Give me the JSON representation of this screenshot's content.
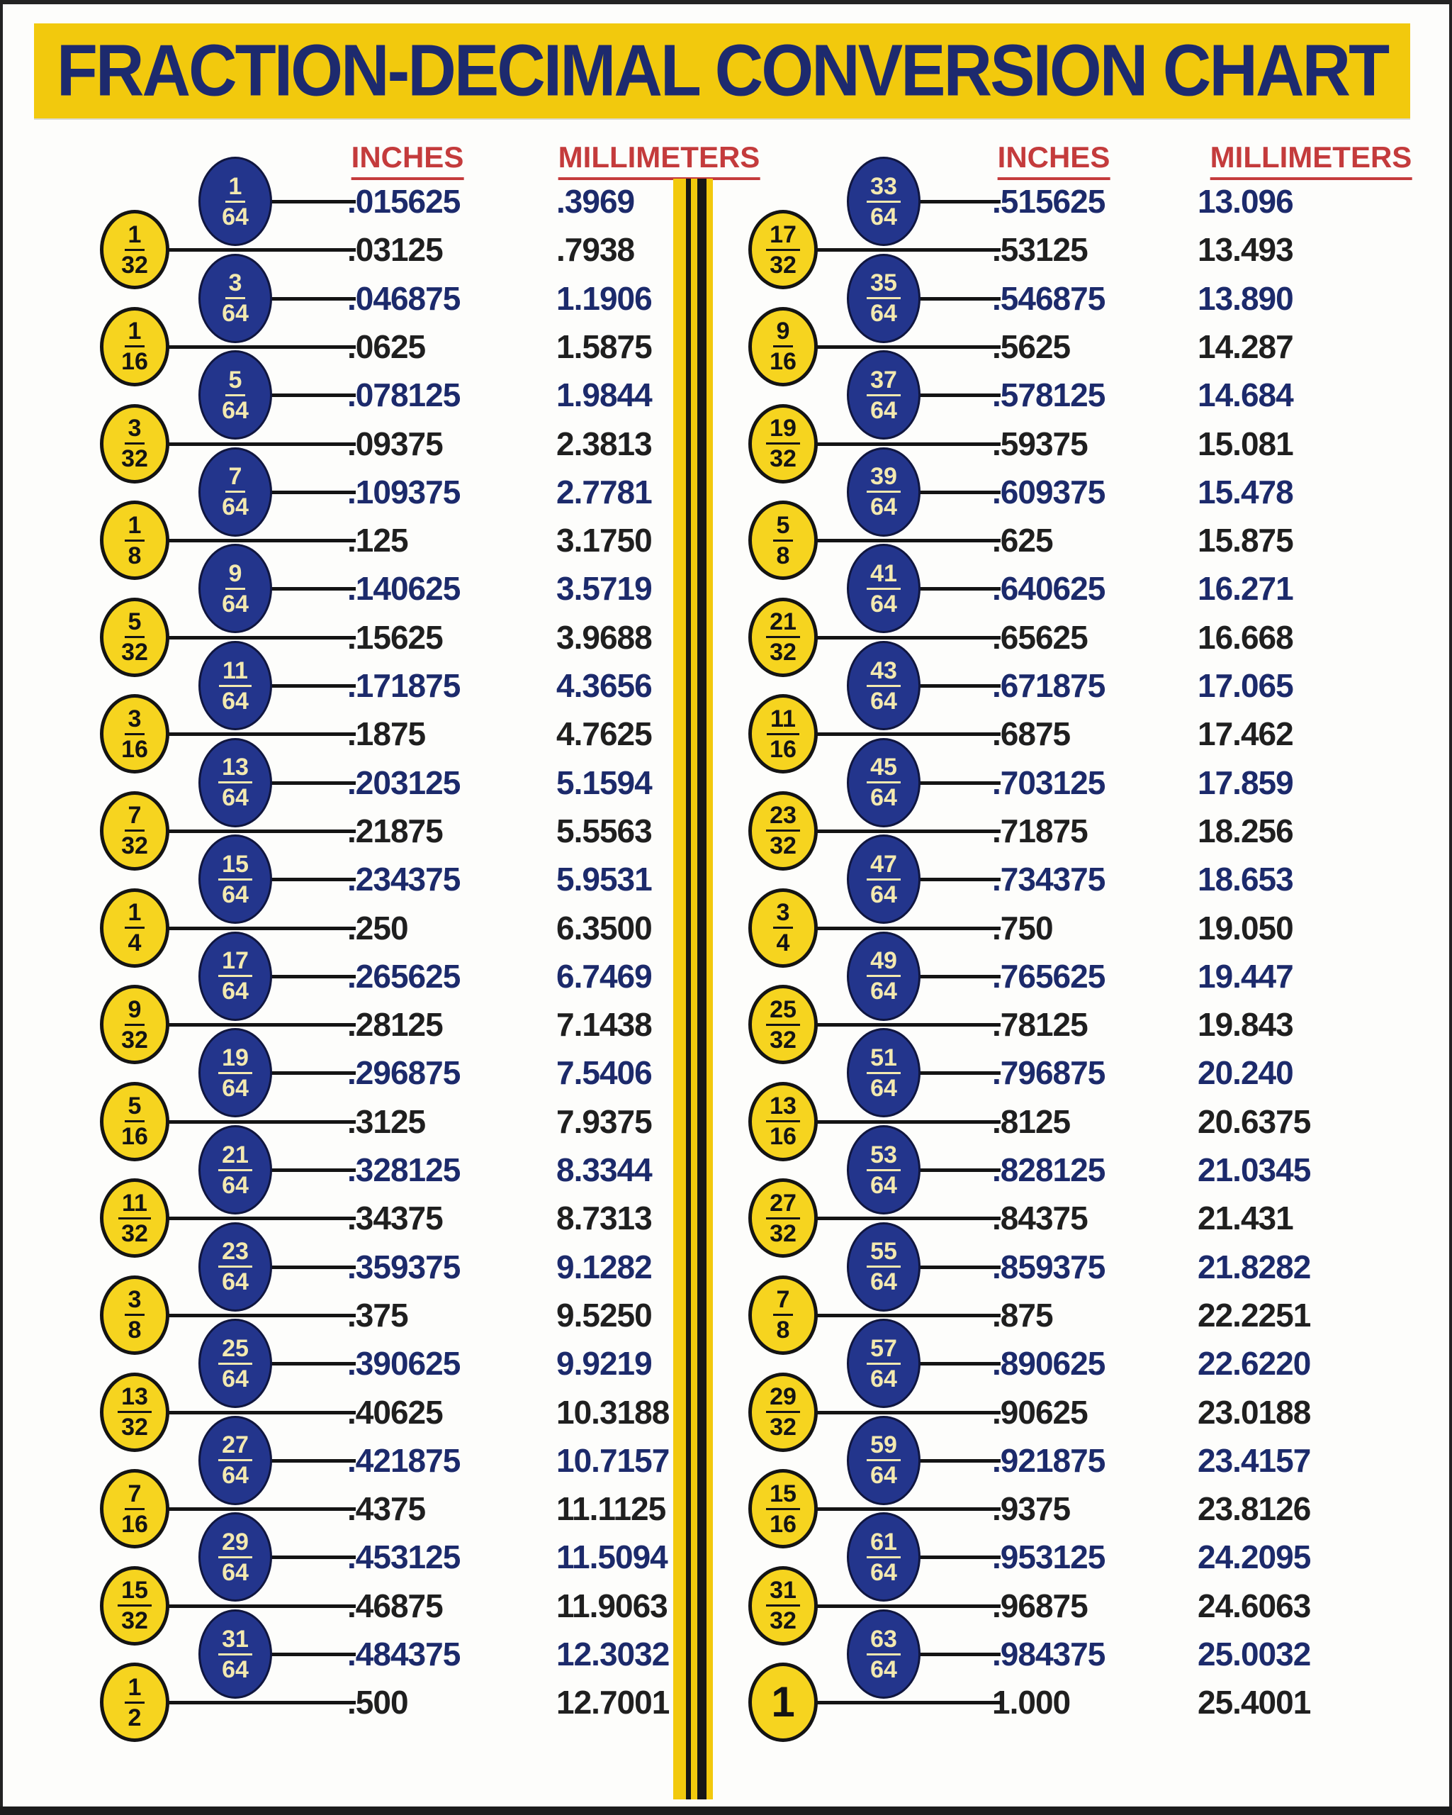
{
  "title": "FRACTION-DECIMAL CONVERSION CHART",
  "headers": {
    "inches": "INCHES",
    "millimeters": "MILLIMETERS"
  },
  "colors": {
    "banner_yellow": "#F2C90D",
    "circle_yellow": "#F6D41F",
    "circle_navy": "#23358C",
    "title_navy": "#1D2A6E",
    "value_navy": "#1C2A6B",
    "value_black": "#1F1F1F",
    "header_red": "#C43B3C",
    "stripe_black": "#161616",
    "background": "#FDFDFB"
  },
  "chart_data": {
    "type": "table",
    "title": "FRACTION-DECIMAL CONVERSION CHART",
    "columns": [
      "fraction",
      "inches",
      "millimeters"
    ],
    "left_rows": [
      {
        "num": "1",
        "den": "64",
        "inches": ".015625",
        "mm": ".3969"
      },
      {
        "num": "1",
        "den": "32",
        "inches": ".03125",
        "mm": ".7938"
      },
      {
        "num": "3",
        "den": "64",
        "inches": ".046875",
        "mm": "1.1906"
      },
      {
        "num": "1",
        "den": "16",
        "inches": ".0625",
        "mm": "1.5875"
      },
      {
        "num": "5",
        "den": "64",
        "inches": ".078125",
        "mm": "1.9844"
      },
      {
        "num": "3",
        "den": "32",
        "inches": ".09375",
        "mm": "2.3813"
      },
      {
        "num": "7",
        "den": "64",
        "inches": ".109375",
        "mm": "2.7781"
      },
      {
        "num": "1",
        "den": "8",
        "inches": ".125",
        "mm": "3.1750"
      },
      {
        "num": "9",
        "den": "64",
        "inches": ".140625",
        "mm": "3.5719"
      },
      {
        "num": "5",
        "den": "32",
        "inches": ".15625",
        "mm": "3.9688"
      },
      {
        "num": "11",
        "den": "64",
        "inches": ".171875",
        "mm": "4.3656"
      },
      {
        "num": "3",
        "den": "16",
        "inches": ".1875",
        "mm": "4.7625"
      },
      {
        "num": "13",
        "den": "64",
        "inches": ".203125",
        "mm": "5.1594"
      },
      {
        "num": "7",
        "den": "32",
        "inches": ".21875",
        "mm": "5.5563"
      },
      {
        "num": "15",
        "den": "64",
        "inches": ".234375",
        "mm": "5.9531"
      },
      {
        "num": "1",
        "den": "4",
        "inches": ".250",
        "mm": "6.3500"
      },
      {
        "num": "17",
        "den": "64",
        "inches": ".265625",
        "mm": "6.7469"
      },
      {
        "num": "9",
        "den": "32",
        "inches": ".28125",
        "mm": "7.1438"
      },
      {
        "num": "19",
        "den": "64",
        "inches": ".296875",
        "mm": "7.5406"
      },
      {
        "num": "5",
        "den": "16",
        "inches": ".3125",
        "mm": "7.9375"
      },
      {
        "num": "21",
        "den": "64",
        "inches": ".328125",
        "mm": "8.3344"
      },
      {
        "num": "11",
        "den": "32",
        "inches": ".34375",
        "mm": "8.7313"
      },
      {
        "num": "23",
        "den": "64",
        "inches": ".359375",
        "mm": "9.1282"
      },
      {
        "num": "3",
        "den": "8",
        "inches": ".375",
        "mm": "9.5250"
      },
      {
        "num": "25",
        "den": "64",
        "inches": ".390625",
        "mm": "9.9219"
      },
      {
        "num": "13",
        "den": "32",
        "inches": ".40625",
        "mm": "10.3188"
      },
      {
        "num": "27",
        "den": "64",
        "inches": ".421875",
        "mm": "10.7157"
      },
      {
        "num": "7",
        "den": "16",
        "inches": ".4375",
        "mm": "11.1125"
      },
      {
        "num": "29",
        "den": "64",
        "inches": ".453125",
        "mm": "11.5094"
      },
      {
        "num": "15",
        "den": "32",
        "inches": ".46875",
        "mm": "11.9063"
      },
      {
        "num": "31",
        "den": "64",
        "inches": ".484375",
        "mm": "12.3032"
      },
      {
        "num": "1",
        "den": "2",
        "inches": ".500",
        "mm": "12.7001"
      }
    ],
    "right_rows": [
      {
        "num": "33",
        "den": "64",
        "inches": ".515625",
        "mm": "13.096"
      },
      {
        "num": "17",
        "den": "32",
        "inches": ".53125",
        "mm": "13.493"
      },
      {
        "num": "35",
        "den": "64",
        "inches": ".546875",
        "mm": "13.890"
      },
      {
        "num": "9",
        "den": "16",
        "inches": ".5625",
        "mm": "14.287"
      },
      {
        "num": "37",
        "den": "64",
        "inches": ".578125",
        "mm": "14.684"
      },
      {
        "num": "19",
        "den": "32",
        "inches": ".59375",
        "mm": "15.081"
      },
      {
        "num": "39",
        "den": "64",
        "inches": ".609375",
        "mm": "15.478"
      },
      {
        "num": "5",
        "den": "8",
        "inches": ".625",
        "mm": "15.875"
      },
      {
        "num": "41",
        "den": "64",
        "inches": ".640625",
        "mm": "16.271"
      },
      {
        "num": "21",
        "den": "32",
        "inches": ".65625",
        "mm": "16.668"
      },
      {
        "num": "43",
        "den": "64",
        "inches": ".671875",
        "mm": "17.065"
      },
      {
        "num": "11",
        "den": "16",
        "inches": ".6875",
        "mm": "17.462"
      },
      {
        "num": "45",
        "den": "64",
        "inches": ".703125",
        "mm": "17.859"
      },
      {
        "num": "23",
        "den": "32",
        "inches": ".71875",
        "mm": "18.256"
      },
      {
        "num": "47",
        "den": "64",
        "inches": ".734375",
        "mm": "18.653"
      },
      {
        "num": "3",
        "den": "4",
        "inches": ".750",
        "mm": "19.050"
      },
      {
        "num": "49",
        "den": "64",
        "inches": ".765625",
        "mm": "19.447"
      },
      {
        "num": "25",
        "den": "32",
        "inches": ".78125",
        "mm": "19.843"
      },
      {
        "num": "51",
        "den": "64",
        "inches": ".796875",
        "mm": "20.240"
      },
      {
        "num": "13",
        "den": "16",
        "inches": ".8125",
        "mm": "20.6375"
      },
      {
        "num": "53",
        "den": "64",
        "inches": ".828125",
        "mm": "21.0345"
      },
      {
        "num": "27",
        "den": "32",
        "inches": ".84375",
        "mm": "21.431"
      },
      {
        "num": "55",
        "den": "64",
        "inches": ".859375",
        "mm": "21.8282"
      },
      {
        "num": "7",
        "den": "8",
        "inches": ".875",
        "mm": "22.2251"
      },
      {
        "num": "57",
        "den": "64",
        "inches": ".890625",
        "mm": "22.6220"
      },
      {
        "num": "29",
        "den": "32",
        "inches": ".90625",
        "mm": "23.0188"
      },
      {
        "num": "59",
        "den": "64",
        "inches": ".921875",
        "mm": "23.4157"
      },
      {
        "num": "15",
        "den": "16",
        "inches": ".9375",
        "mm": "23.8126"
      },
      {
        "num": "61",
        "den": "64",
        "inches": ".953125",
        "mm": "24.2095"
      },
      {
        "num": "31",
        "den": "32",
        "inches": ".96875",
        "mm": "24.6063"
      },
      {
        "num": "63",
        "den": "64",
        "inches": ".984375",
        "mm": "25.0032"
      },
      {
        "num": "1",
        "den": null,
        "inches": "1.000",
        "mm": "25.4001"
      }
    ]
  }
}
